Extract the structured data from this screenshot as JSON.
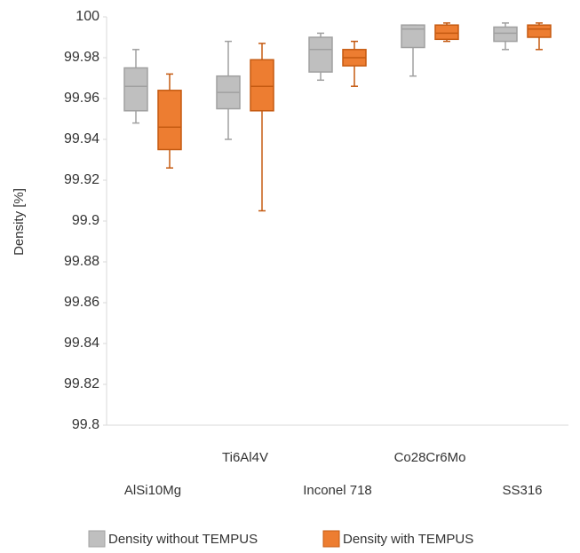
{
  "chart_data": {
    "type": "box",
    "y_label": "Density [%]",
    "categories": [
      "AlSi10Mg",
      "Ti6Al4V",
      "Inconel 718",
      "Co28Cr6Mo",
      "SS316"
    ],
    "ylim": [
      99.8,
      100
    ],
    "yticks": [
      99.8,
      99.82,
      99.84,
      99.86,
      99.88,
      99.9,
      99.92,
      99.94,
      99.96,
      99.98,
      100
    ],
    "grid": false,
    "legend": "bottom",
    "series": [
      {
        "name": "Density without TEMPUS",
        "color": "#bfbfbf",
        "stroke": "#a0a0a0",
        "min": [
          99.948,
          99.94,
          99.969,
          99.971,
          99.984
        ],
        "q1": [
          99.954,
          99.955,
          99.973,
          99.985,
          99.988
        ],
        "median": [
          99.966,
          99.963,
          99.984,
          99.994,
          99.992
        ],
        "q3": [
          99.975,
          99.971,
          99.99,
          99.996,
          99.995
        ],
        "max": [
          99.984,
          99.988,
          99.992,
          99.996,
          99.997
        ]
      },
      {
        "name": "Density with TEMPUS",
        "color": "#ed7d31",
        "stroke": "#c55a11",
        "min": [
          99.926,
          99.905,
          99.966,
          99.988,
          99.984
        ],
        "q1": [
          99.935,
          99.954,
          99.976,
          99.989,
          99.99
        ],
        "median": [
          99.946,
          99.966,
          99.98,
          99.992,
          99.994
        ],
        "q3": [
          99.964,
          99.979,
          99.984,
          99.996,
          99.996
        ],
        "max": [
          99.972,
          99.987,
          99.988,
          99.997,
          99.997
        ]
      }
    ]
  }
}
